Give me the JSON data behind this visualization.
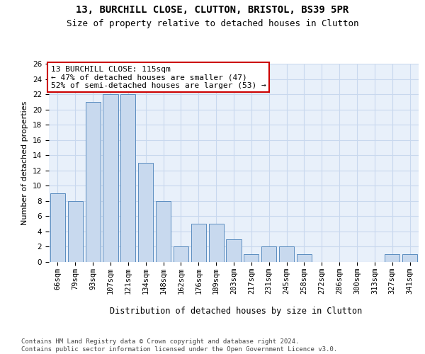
{
  "title1": "13, BURCHILL CLOSE, CLUTTON, BRISTOL, BS39 5PR",
  "title2": "Size of property relative to detached houses in Clutton",
  "xlabel": "Distribution of detached houses by size in Clutton",
  "ylabel": "Number of detached properties",
  "categories": [
    "66sqm",
    "79sqm",
    "93sqm",
    "107sqm",
    "121sqm",
    "134sqm",
    "148sqm",
    "162sqm",
    "176sqm",
    "189sqm",
    "203sqm",
    "217sqm",
    "231sqm",
    "245sqm",
    "258sqm",
    "272sqm",
    "286sqm",
    "300sqm",
    "313sqm",
    "327sqm",
    "341sqm"
  ],
  "values": [
    9,
    8,
    21,
    22,
    22,
    13,
    8,
    2,
    5,
    5,
    3,
    1,
    2,
    2,
    1,
    0,
    0,
    0,
    0,
    1,
    1
  ],
  "bar_color": "#c8d9ee",
  "bar_edge_color": "#5b8dc0",
  "ylim": [
    0,
    26
  ],
  "yticks": [
    0,
    2,
    4,
    6,
    8,
    10,
    12,
    14,
    16,
    18,
    20,
    22,
    24,
    26
  ],
  "grid_color": "#c8d8ee",
  "bg_color": "#e8f0fa",
  "annotation_text": "13 BURCHILL CLOSE: 115sqm\n← 47% of detached houses are smaller (47)\n52% of semi-detached houses are larger (53) →",
  "annotation_box_color": "#ffffff",
  "annotation_box_edge": "#cc0000",
  "footer": "Contains HM Land Registry data © Crown copyright and database right 2024.\nContains public sector information licensed under the Open Government Licence v3.0.",
  "title1_fontsize": 10,
  "title2_fontsize": 9,
  "xlabel_fontsize": 8.5,
  "ylabel_fontsize": 8,
  "tick_fontsize": 7.5,
  "annotation_fontsize": 8,
  "footer_fontsize": 6.5
}
